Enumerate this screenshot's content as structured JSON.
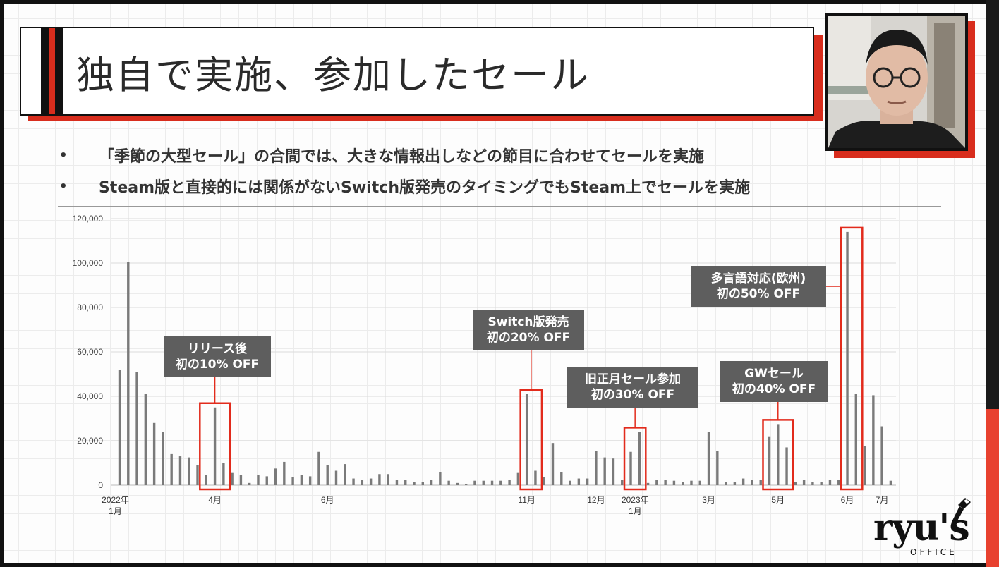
{
  "slide": {
    "title": "独自で実施、参加したセール",
    "bullets": [
      "「季節の大型セール」の合間では、大きな情報出しなどの節目に合わせてセールを実施",
      "Steam版と直接的には関係がないSwitch版発売のタイミングでもSteam上でセールを実施"
    ]
  },
  "logo": {
    "text": "ryu's",
    "sub": "OFFICE"
  },
  "colors": {
    "bar": "#7a7a7a",
    "highlight": "#e22b1c",
    "callout_bg": "#5e5e5e",
    "callout_text": "#ffffff",
    "accent_red": "#d82d1d"
  },
  "chart_data": {
    "type": "bar",
    "ylim": [
      0,
      120000
    ],
    "yticks": [
      "0",
      "20,000",
      "40,000",
      "60,000",
      "80,000",
      "100,000",
      "120,000"
    ],
    "series": [
      {
        "values": [
          52000,
          100500,
          51000,
          41000,
          28000,
          24000,
          14000,
          13000,
          12500,
          9000,
          4500,
          35000,
          10000,
          5500,
          4500,
          1000,
          4500,
          4000,
          7500,
          10500,
          3500,
          4500,
          4000,
          15000,
          9000,
          6500,
          9500,
          3000,
          2500,
          3000,
          5000,
          5000,
          2500,
          2500,
          1500,
          1500,
          2500,
          6000,
          2000,
          1000,
          500,
          2000,
          2000,
          2000,
          2000,
          2500,
          5500,
          41000,
          6500,
          3500,
          19000,
          6000,
          2000,
          3000,
          3000,
          15500,
          12500,
          12000,
          2500,
          15000,
          24000,
          1000,
          2500,
          2500,
          2000,
          1500,
          2000,
          2000,
          24000,
          15500,
          1500,
          1500,
          3000,
          2500,
          2500,
          22000,
          27500,
          17000,
          1500,
          2500,
          1500,
          1500,
          2500,
          2500,
          114000,
          41000,
          17500,
          40500,
          26500,
          2000
        ]
      }
    ],
    "x_labels": [
      {
        "index": 0,
        "lines": [
          "2022年",
          "1月"
        ]
      },
      {
        "index": 11,
        "lines": [
          "4月"
        ]
      },
      {
        "index": 24,
        "lines": [
          "6月"
        ]
      },
      {
        "index": 47,
        "lines": [
          "11月"
        ]
      },
      {
        "index": 55,
        "lines": [
          "12月"
        ]
      },
      {
        "index": 60,
        "lines": [
          "2023年",
          "1月"
        ]
      },
      {
        "index": 68,
        "lines": [
          "3月"
        ]
      },
      {
        "index": 76,
        "lines": [
          "5月"
        ]
      },
      {
        "index": 84,
        "lines": [
          "6月"
        ]
      },
      {
        "index": 88,
        "lines": [
          "7月"
        ]
      }
    ],
    "annotations": [
      {
        "lines": [
          "リリース後",
          "初の10% OFF"
        ],
        "box_start": 10,
        "box_end": 12
      },
      {
        "lines": [
          "Switch版発売",
          "初の20% OFF"
        ],
        "box_start": 47,
        "box_end": 48
      },
      {
        "lines": [
          "旧正月セール参加",
          "初の30% OFF"
        ],
        "box_start": 59,
        "box_end": 60
      },
      {
        "lines": [
          "GWセール",
          "初の40% OFF"
        ],
        "box_start": 75,
        "box_end": 77
      },
      {
        "lines": [
          "多言語対応(欧州)",
          "初の50% OFF"
        ],
        "box_start": 84,
        "box_end": 85
      }
    ]
  }
}
